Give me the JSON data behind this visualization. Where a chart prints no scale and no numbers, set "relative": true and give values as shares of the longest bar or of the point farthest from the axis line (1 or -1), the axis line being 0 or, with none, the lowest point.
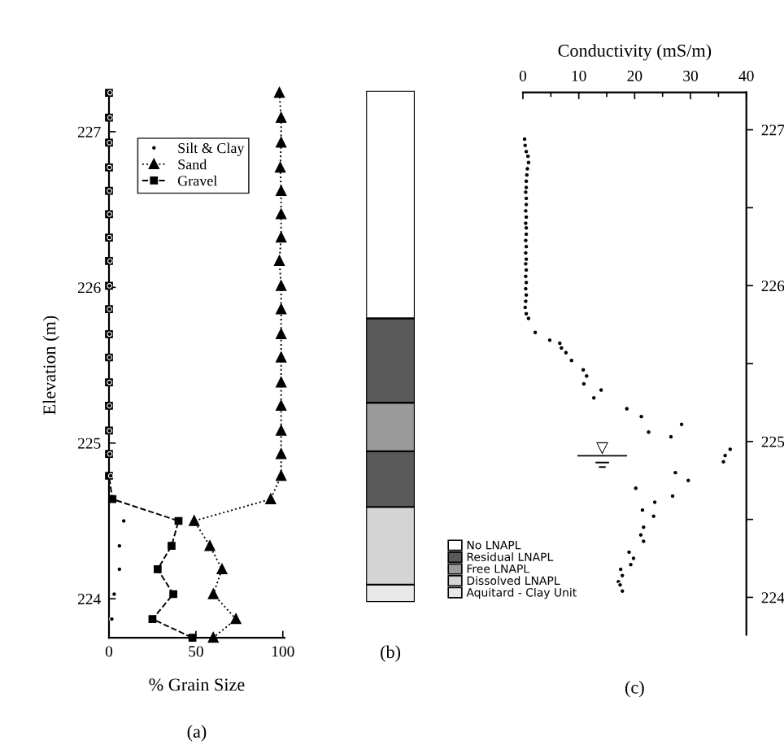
{
  "chart_data": [
    {
      "type": "line",
      "xlabel": "% Grain Size",
      "ylabel": "Elevation (m)",
      "annotations": [
        "(a)"
      ],
      "xlim": [
        0,
        101
      ],
      "xticks": [
        0,
        50,
        100
      ],
      "ylim": [
        223.75,
        227.25
      ],
      "yticks": [
        224,
        225,
        226,
        227
      ],
      "legend": "top",
      "series": [
        {
          "name": "Silt & Clay",
          "type": "scatter",
          "color": "#000000",
          "marker": "circle",
          "x": [
            0.6,
            0.6,
            0.3,
            0.3,
            0.3,
            0.3,
            0.3,
            0.6,
            0.3,
            0.3,
            0.3,
            0.3,
            0.3,
            0.3,
            0.3,
            0.5,
            1,
            8.5,
            6,
            6,
            3,
            1.6
          ],
          "values": [
            227.25,
            227.09,
            226.93,
            226.77,
            226.62,
            226.47,
            226.32,
            226.17,
            226.01,
            225.86,
            225.7,
            225.55,
            225.39,
            225.24,
            225.08,
            224.93,
            224.79,
            224.5,
            224.34,
            224.19,
            224.03,
            223.87
          ]
        },
        {
          "name": "Sand",
          "type": "line",
          "color": "#000000",
          "marker": "triangle",
          "line_style": "dotted",
          "x": [
            98,
            99,
            99,
            98.5,
            99,
            99,
            99,
            98,
            99,
            99,
            99,
            99,
            99,
            99,
            99,
            99,
            99,
            93,
            49,
            58,
            65,
            60,
            73,
            60
          ],
          "values": [
            227.25,
            227.09,
            226.93,
            226.77,
            226.62,
            226.47,
            226.32,
            226.17,
            226.01,
            225.86,
            225.7,
            225.55,
            225.39,
            225.24,
            225.08,
            224.93,
            224.79,
            224.64,
            224.5,
            224.34,
            224.19,
            224.03,
            223.87,
            223.75
          ]
        },
        {
          "name": "Gravel",
          "type": "line",
          "color": "#000000",
          "marker": "square",
          "line_style": "dashed",
          "x": [
            0,
            0,
            0,
            0,
            0,
            0,
            0,
            0,
            0,
            0,
            0,
            0,
            0,
            0,
            0,
            0,
            0,
            2,
            40,
            36,
            28,
            37,
            25,
            48
          ],
          "values": [
            227.25,
            227.09,
            226.93,
            226.77,
            226.62,
            226.47,
            226.32,
            226.17,
            226.01,
            225.86,
            225.7,
            225.55,
            225.39,
            225.24,
            225.08,
            224.93,
            224.79,
            224.64,
            224.5,
            224.34,
            224.19,
            224.03,
            223.87,
            223.75
          ]
        }
      ]
    },
    {
      "type": "bar",
      "stacked": true,
      "relative": true,
      "categories": [
        null
      ],
      "annotations": [
        "(b)"
      ],
      "legend": "bottom right",
      "series": [
        {
          "name": "Aquitard - Clay Unit",
          "color": "#e8e8e8",
          "values": [
            0.034
          ]
        },
        {
          "name": "Dissolved LNAPL",
          "color": "#d4d4d4",
          "values": [
            0.152
          ]
        },
        {
          "color": "#5a5a5a",
          "values": [
            0.109
          ]
        },
        {
          "name": "Free LNAPL",
          "color": "#9a9a9a",
          "values": [
            0.095
          ]
        },
        {
          "name": "Residual LNAPL",
          "color": "#5a5a5a",
          "values": [
            0.165
          ]
        },
        {
          "name": "No LNAPL",
          "color": "#ffffff",
          "values": [
            0.445
          ]
        }
      ]
    },
    {
      "type": "scatter",
      "xlabel": "Conductivity (mS/m)",
      "annotations": [
        "(c)",
        "▽"
      ],
      "xlim": [
        0,
        40
      ],
      "xticks": [
        0,
        {
          "value": 5,
          "label": null
        },
        10,
        {
          "value": 15,
          "label": null
        },
        20,
        {
          "value": 25,
          "label": null
        },
        30,
        {
          "value": 35,
          "label": null
        },
        40
      ],
      "ylim": [
        223.76,
        227.24
      ],
      "yticks": [
        224,
        {
          "value": 224.5,
          "label": null
        },
        225,
        {
          "value": 225.5,
          "label": null
        },
        226,
        {
          "value": 226.5,
          "label": null
        },
        227
      ],
      "series": [
        {
          "color": "#000000",
          "marker": "circle",
          "x": [
            0.3,
            0.4,
            0.6,
            0.9,
            1.0,
            0.8,
            0.7,
            0.6,
            0.6,
            0.5,
            0.6,
            0.6,
            0.5,
            0.6,
            0.5,
            0.6,
            0.6,
            0.5,
            0.6,
            0.5,
            0.6,
            0.5,
            0.6,
            0.5,
            0.6,
            0.5,
            0.6,
            0.5,
            0.4,
            0.6,
            1.0,
            2.2,
            4.8,
            6.6,
            6.9,
            7.7,
            8.7,
            10.8,
            11.4,
            10.9,
            14.0,
            12.7,
            18.6,
            21.2,
            28.4,
            22.5,
            26.5,
            37.1,
            36.2,
            35.9,
            27.3,
            29.6,
            20.2,
            26.8,
            23.6,
            21.4,
            23.4,
            21.6,
            21.1,
            21.6,
            19.0,
            19.8,
            19.3,
            17.5,
            17.8,
            17.1,
            17.4,
            17.8
          ],
          "values": [
            226.94,
            226.9,
            226.86,
            226.83,
            226.79,
            226.75,
            226.71,
            226.67,
            226.63,
            226.6,
            226.56,
            226.52,
            226.48,
            226.44,
            226.4,
            226.37,
            226.33,
            226.29,
            226.25,
            226.21,
            226.17,
            226.14,
            226.1,
            226.06,
            226.02,
            225.98,
            225.94,
            225.9,
            225.86,
            225.82,
            225.79,
            225.7,
            225.65,
            225.63,
            225.6,
            225.57,
            225.52,
            225.46,
            225.42,
            225.37,
            225.33,
            225.28,
            225.21,
            225.16,
            225.11,
            225.06,
            225.03,
            224.95,
            224.91,
            224.87,
            224.8,
            224.75,
            224.7,
            224.65,
            224.61,
            224.56,
            224.52,
            224.45,
            224.4,
            224.36,
            224.29,
            224.25,
            224.21,
            224.18,
            224.14,
            224.1,
            224.08,
            224.04
          ]
        }
      ]
    }
  ]
}
